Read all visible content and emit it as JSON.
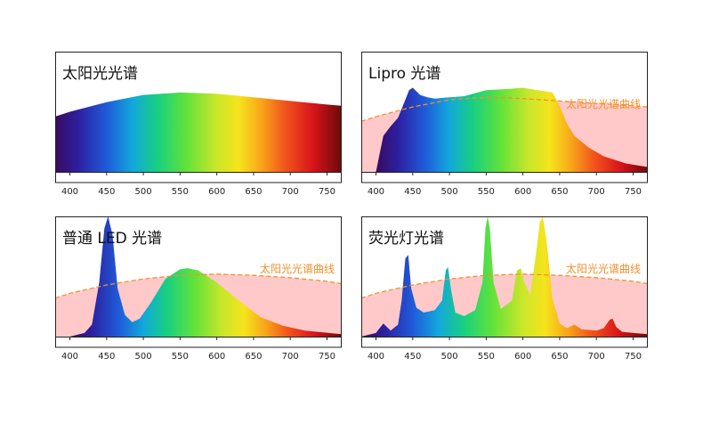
{
  "colors": {
    "reference_fill": "#ffc9c9",
    "reference_line": "#f0912c",
    "frame": "#222222"
  },
  "chart_data": [
    {
      "type": "area",
      "title": "太阳光光谱",
      "xlim": [
        380,
        770
      ],
      "ylim": [
        0,
        1
      ],
      "x_ticks": [
        "400",
        "450",
        "500",
        "550",
        "600",
        "650",
        "700",
        "750"
      ],
      "reference_label": "",
      "series": [
        {
          "x": [
            380,
            400,
            450,
            500,
            550,
            600,
            650,
            700,
            750,
            770
          ],
          "y": [
            0.46,
            0.5,
            0.58,
            0.64,
            0.66,
            0.65,
            0.62,
            0.59,
            0.56,
            0.55
          ]
        }
      ]
    },
    {
      "type": "area",
      "title": "Lipro 光谱",
      "xlim": [
        380,
        770
      ],
      "ylim": [
        0,
        1
      ],
      "x_ticks": [
        "400",
        "450",
        "500",
        "550",
        "600",
        "650",
        "700",
        "750"
      ],
      "reference_label": "太阳光光谱曲线",
      "reference": {
        "x": [
          380,
          400,
          450,
          500,
          550,
          600,
          650,
          700,
          750,
          770
        ],
        "y": [
          0.42,
          0.46,
          0.54,
          0.6,
          0.62,
          0.61,
          0.59,
          0.57,
          0.55,
          0.54
        ]
      },
      "series": [
        {
          "x": [
            400,
            405,
            410,
            420,
            430,
            440,
            445,
            450,
            455,
            460,
            470,
            480,
            500,
            520,
            550,
            580,
            600,
            620,
            640,
            650,
            660,
            670,
            690,
            710,
            740,
            770
          ],
          "y": [
            0,
            0.15,
            0.3,
            0.38,
            0.45,
            0.6,
            0.68,
            0.7,
            0.67,
            0.64,
            0.62,
            0.61,
            0.62,
            0.63,
            0.68,
            0.69,
            0.7,
            0.68,
            0.66,
            0.55,
            0.4,
            0.3,
            0.2,
            0.13,
            0.07,
            0.04
          ]
        }
      ]
    },
    {
      "type": "area",
      "title": "普通 LED 光谱",
      "xlim": [
        380,
        770
      ],
      "ylim": [
        0,
        1
      ],
      "x_ticks": [
        "400",
        "450",
        "500",
        "550",
        "600",
        "650",
        "700",
        "750"
      ],
      "reference_label": "太阳光光谱曲线",
      "reference": {
        "x": [
          380,
          400,
          450,
          500,
          550,
          600,
          650,
          700,
          750,
          770
        ],
        "y": [
          0.32,
          0.36,
          0.43,
          0.48,
          0.51,
          0.52,
          0.51,
          0.49,
          0.46,
          0.44
        ]
      },
      "series": [
        {
          "x": [
            400,
            420,
            430,
            440,
            447,
            452,
            458,
            465,
            475,
            485,
            495,
            510,
            530,
            550,
            560,
            575,
            600,
            630,
            660,
            690,
            720,
            770
          ],
          "y": [
            0,
            0.03,
            0.1,
            0.45,
            0.9,
            1.0,
            0.85,
            0.4,
            0.18,
            0.12,
            0.15,
            0.28,
            0.48,
            0.56,
            0.57,
            0.55,
            0.45,
            0.3,
            0.16,
            0.09,
            0.05,
            0.02
          ]
        }
      ]
    },
    {
      "type": "area",
      "title": "荧光灯光谱",
      "xlim": [
        380,
        770
      ],
      "ylim": [
        0,
        1
      ],
      "x_ticks": [
        "400",
        "450",
        "500",
        "550",
        "600",
        "650",
        "700",
        "750"
      ],
      "reference_label": "太阳光光谱曲线",
      "reference": {
        "x": [
          380,
          400,
          450,
          500,
          550,
          600,
          650,
          700,
          750,
          770
        ],
        "y": [
          0.32,
          0.36,
          0.43,
          0.48,
          0.51,
          0.52,
          0.51,
          0.49,
          0.46,
          0.44
        ]
      },
      "series": [
        {
          "x": [
            380,
            400,
            405,
            410,
            415,
            420,
            430,
            435,
            440,
            444,
            448,
            455,
            465,
            480,
            490,
            495,
            498,
            502,
            508,
            520,
            535,
            545,
            549,
            552,
            555,
            560,
            570,
            585,
            592,
            597,
            602,
            610,
            618,
            623,
            627,
            632,
            640,
            650,
            660,
            670,
            680,
            700,
            710,
            718,
            722,
            727,
            735,
            750,
            770
          ],
          "y": [
            0,
            0.03,
            0.07,
            0.11,
            0.08,
            0.05,
            0.1,
            0.3,
            0.65,
            0.68,
            0.4,
            0.24,
            0.2,
            0.22,
            0.3,
            0.55,
            0.58,
            0.4,
            0.2,
            0.17,
            0.22,
            0.45,
            0.9,
            1.0,
            0.9,
            0.45,
            0.23,
            0.3,
            0.55,
            0.57,
            0.45,
            0.35,
            0.7,
            0.95,
            1.0,
            0.8,
            0.32,
            0.11,
            0.07,
            0.1,
            0.06,
            0.05,
            0.07,
            0.14,
            0.15,
            0.08,
            0.04,
            0.03,
            0.02
          ]
        }
      ]
    }
  ]
}
